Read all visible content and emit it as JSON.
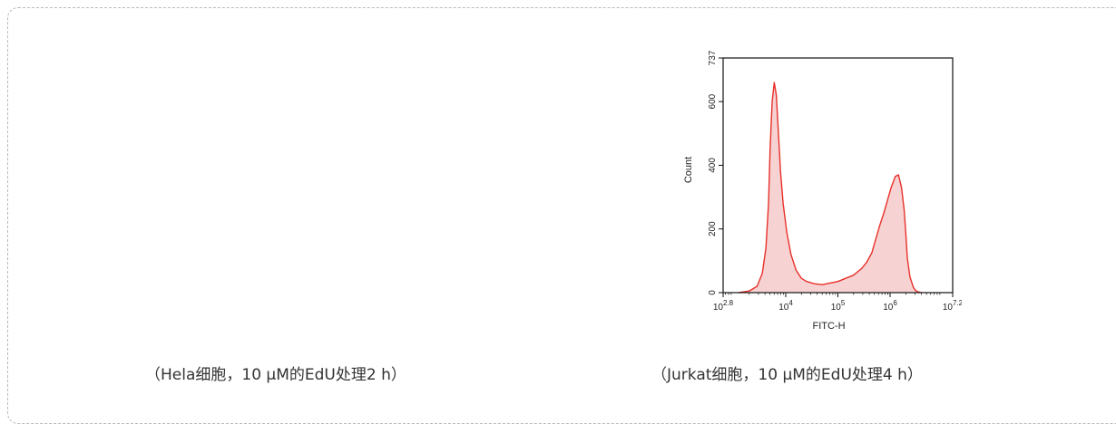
{
  "captions": {
    "left": "（Hela细胞，10 μM的EdU处理2 h）",
    "right": "（Jurkat细胞，10 μM的EdU处理4 h）"
  },
  "chart_data": {
    "type": "area",
    "xlabel": "FITC-H",
    "ylabel": "Count",
    "x_scale": "log10",
    "xlim_log10": [
      2.8,
      7.2
    ],
    "ylim": [
      0,
      737
    ],
    "y_ticks": [
      {
        "value": 0,
        "label": "0"
      },
      {
        "value": 200,
        "label": "200"
      },
      {
        "value": 400,
        "label": "400"
      },
      {
        "value": 600,
        "label": "600"
      },
      {
        "value": 737,
        "label": "737"
      }
    ],
    "x_ticks": [
      {
        "exp": 2.8,
        "base": "10",
        "sup": "2.8"
      },
      {
        "exp": 4,
        "base": "10",
        "sup": "4"
      },
      {
        "exp": 5,
        "base": "10",
        "sup": "5"
      },
      {
        "exp": 6,
        "base": "10",
        "sup": "6"
      },
      {
        "exp": 7.2,
        "base": "10",
        "sup": "7.2"
      }
    ],
    "line_color": "#e8302a",
    "fill_color": "#f6d2d2",
    "series": [
      {
        "x_log10": [
          3.1,
          3.3,
          3.45,
          3.55,
          3.62,
          3.67,
          3.7,
          3.74,
          3.78,
          3.82,
          3.86,
          3.9,
          3.95,
          4.02,
          4.1,
          4.2,
          4.3,
          4.4,
          4.55,
          4.7,
          4.85,
          5.0,
          5.15,
          5.3,
          5.45,
          5.55,
          5.65,
          5.72,
          5.8,
          5.88,
          5.95,
          6.02,
          6.1,
          6.16,
          6.22,
          6.27,
          6.3,
          6.33,
          6.38,
          6.45,
          6.5,
          6.55,
          6.6
        ],
        "y": [
          0,
          5,
          20,
          60,
          140,
          280,
          450,
          600,
          660,
          620,
          500,
          380,
          280,
          190,
          120,
          70,
          45,
          35,
          28,
          25,
          30,
          35,
          45,
          55,
          75,
          95,
          125,
          165,
          210,
          250,
          290,
          330,
          365,
          370,
          330,
          260,
          190,
          110,
          50,
          15,
          5,
          2,
          0
        ]
      }
    ]
  }
}
